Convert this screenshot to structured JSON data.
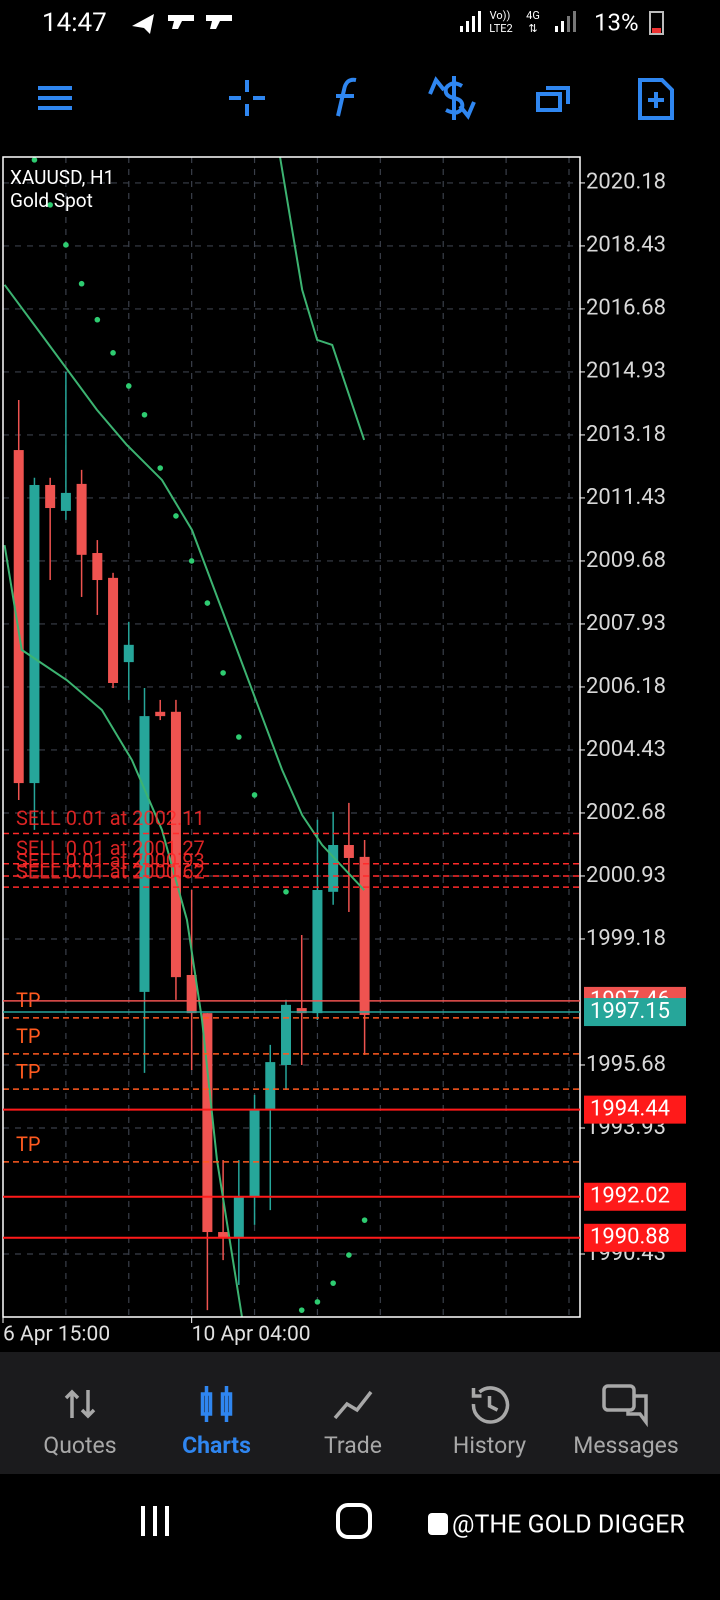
{
  "status_bar": {
    "time": "14:47",
    "volte": "Vo))",
    "lte": "LTE2",
    "network": "4G",
    "battery": "13%"
  },
  "chart": {
    "type": "candlestick",
    "symbol": "XAUUSD, H1",
    "description": "Gold Spot",
    "ylim": [
      1988.68,
      2020.9
    ],
    "xlim": [
      -1,
      35.7
    ],
    "yticks": [
      2020.18,
      2018.43,
      2016.68,
      2014.93,
      2013.18,
      2011.43,
      2009.68,
      2007.93,
      2006.18,
      2004.43,
      2002.68,
      2000.93,
      1999.18,
      1995.68,
      1993.93,
      1990.43
    ],
    "xticks": [
      {
        "value": -1,
        "label": "6 Apr 15:00"
      },
      {
        "value": 11,
        "label": "10 Apr 04:00"
      }
    ],
    "xgrid": [
      3,
      7,
      11,
      15,
      19,
      23,
      27,
      31,
      35
    ],
    "grid": true,
    "colors": {
      "up": "#26a69a",
      "down": "#ef5350",
      "ma": "#3cb371",
      "sar": "#2ecc71",
      "order": "#ff2a2a",
      "tp": "#ff5a1f",
      "level": "#ff1a1a",
      "bid": "#26a69a",
      "ask": "#ef5350"
    },
    "candles": {
      "open": [
        2012.76,
        2003.51,
        2011.79,
        2011.07,
        2011.82,
        2009.9,
        2009.21,
        2006.87,
        1997.71,
        2005.49,
        2005.49,
        1998.18,
        1997.12,
        1991.04,
        1990.9,
        1992.01,
        1994.43,
        1995.68,
        1997.26,
        1997.12,
        2000.49,
        2001.79,
        2001.46
      ],
      "high": [
        2014.15,
        2011.99,
        2011.99,
        2014.93,
        2012.21,
        2010.26,
        2009.35,
        2007.99,
        2006.15,
        2005.82,
        2005.82,
        2000.54,
        1997.12,
        1993.04,
        1993.04,
        1994.85,
        1996.24,
        1997.49,
        1999.29,
        2002.49,
        2002.71,
        2002.96,
        2001.93
      ],
      "low": [
        2003.04,
        2002.21,
        2009.15,
        2010.82,
        2008.68,
        2008.18,
        2006.15,
        2005.82,
        1995.46,
        2005.26,
        1997.49,
        1995.54,
        1988.87,
        1990.26,
        1989.57,
        1991.24,
        1991.65,
        1994.99,
        1995.68,
        1996.93,
        2000.13,
        1999.93,
        1995.96
      ],
      "close": [
        2003.51,
        2011.79,
        2011.15,
        2011.57,
        2009.85,
        2009.15,
        2006.29,
        2007.35,
        2005.37,
        2005.37,
        1998.12,
        1997.12,
        1991.04,
        1990.87,
        1992.01,
        1994.43,
        1995.76,
        1997.35,
        1997.12,
        2000.54,
        2001.79,
        2001.43,
        1997.07
      ]
    },
    "moving_averages": [
      {
        "x": [
          -0.9,
          1.46,
          4.97,
          6.88,
          9.11,
          11.02,
          12.93,
          14.84,
          16.75,
          18.03,
          19.3,
          21.97
        ],
        "values": [
          2017.35,
          2015.96,
          2013.88,
          2012.9,
          2011.93,
          2010.54,
          2008.32,
          2006.1,
          2003.88,
          2002.62,
          2001.79,
          2000.54
        ]
      },
      {
        "x": [
          -0.9,
          0.19,
          3.06,
          5.29,
          7.2,
          9.11,
          10.7,
          11.66,
          12.61,
          14.2
        ],
        "values": [
          2010.12,
          2007.21,
          2006.37,
          2005.54,
          2004.15,
          2002.21,
          1999.71,
          1996.93,
          1993.04,
          1988.68
        ]
      },
      {
        "x": [
          16.62,
          18.03,
          18.98,
          19.94,
          21.97
        ],
        "values": [
          2020.9,
          2017.21,
          2015.82,
          2015.68,
          2013.04
        ]
      }
    ],
    "sar": [
      null,
      2020.82,
      2019.57,
      2018.46,
      2017.38,
      2016.38,
      2015.46,
      2014.54,
      2013.74,
      2012.26,
      2010.93,
      2009.68,
      2008.51,
      2006.57,
      2004.79,
      2003.18,
      null,
      2000.49,
      1988.87,
      1989.1,
      1989.62,
      1990.4,
      1991.37
    ],
    "orders": [
      {
        "label": "SELL 0.01 at 2002.11",
        "price": 2002.11
      },
      {
        "label": "SELL 0.01 at 2001.27",
        "price": 2001.27
      },
      {
        "label": "SELL 0.01 at 2000.93",
        "price": 2000.93
      },
      {
        "label": "SELL 0.01 at 2000.62",
        "price": 2000.62
      }
    ],
    "take_profits": {
      "label": "TP",
      "prices": [
        1996.99,
        1995.99,
        1995.01,
        1992.99
      ]
    },
    "levels": [
      1994.44,
      1992.02,
      1990.88
    ],
    "ask": 1997.46,
    "bid": 1997.15
  },
  "nav": {
    "tabs": [
      "Quotes",
      "Charts",
      "Trade",
      "History",
      "Messages"
    ],
    "active": 1
  },
  "watermark": "@THE GOLD DIGGER"
}
